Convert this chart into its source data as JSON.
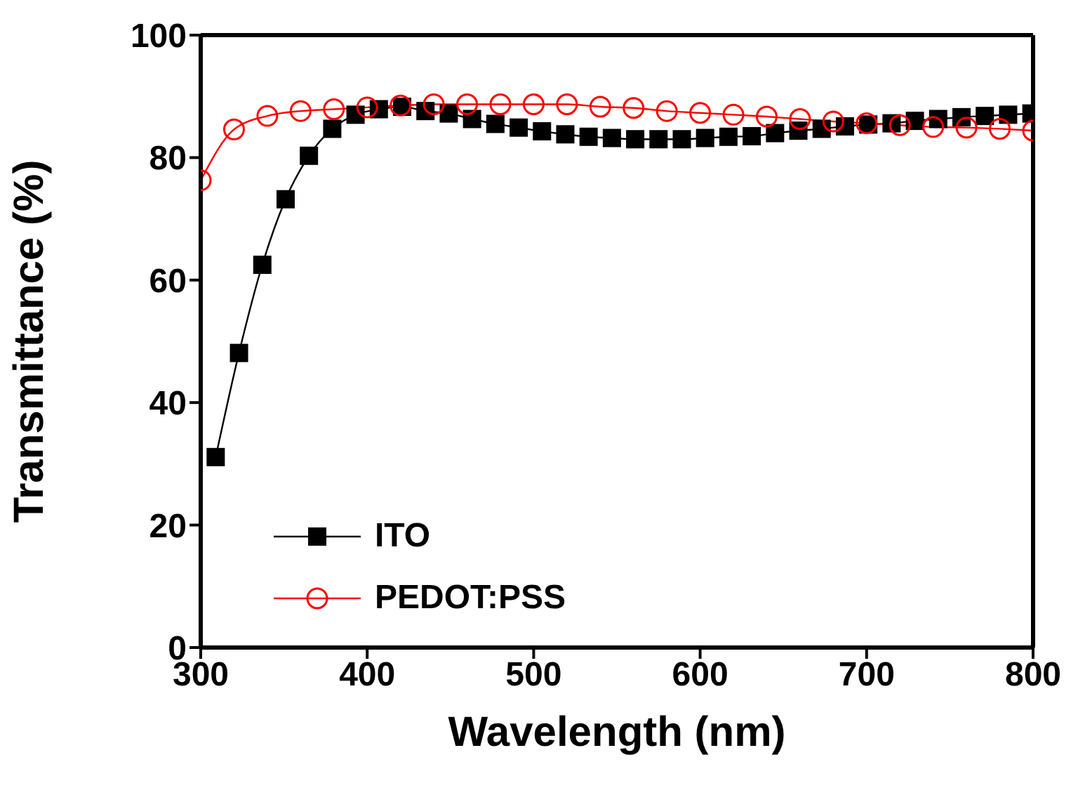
{
  "chart_data": {
    "type": "line",
    "xlabel": "Wavelength (nm)",
    "ylabel": "Transmittance (%)",
    "xlim": [
      300,
      800
    ],
    "ylim": [
      0,
      100
    ],
    "xticks": [
      300,
      400,
      500,
      600,
      700,
      800
    ],
    "yticks": [
      0,
      20,
      40,
      60,
      80,
      100
    ],
    "grid": false,
    "legend": "bottom left",
    "line_style": "solid",
    "series": [
      {
        "name": "ITO",
        "color": "#000000",
        "marker": "square",
        "x": [
          309,
          323,
          337,
          351,
          365,
          379,
          393,
          407,
          421,
          435,
          449,
          463,
          477,
          491,
          505,
          519,
          533,
          547,
          561,
          575,
          589,
          603,
          617,
          631,
          645,
          659,
          673,
          687,
          701,
          715,
          729,
          743,
          757,
          771,
          785,
          799
        ],
        "values": [
          31.1,
          48.1,
          62.5,
          73.2,
          80.3,
          84.7,
          87.0,
          87.9,
          88.3,
          87.6,
          87.2,
          86.3,
          85.5,
          84.9,
          84.3,
          83.8,
          83.4,
          83.2,
          83.0,
          83.0,
          83.0,
          83.2,
          83.4,
          83.5,
          84.0,
          84.4,
          84.7,
          85.1,
          85.4,
          85.6,
          86.0,
          86.3,
          86.6,
          86.8,
          87.0,
          87.2
        ]
      },
      {
        "name": "PEDOT:PSS",
        "color": "#ff0000",
        "marker": "circle",
        "x": [
          300,
          320,
          340,
          360,
          380,
          400,
          420,
          440,
          460,
          480,
          500,
          520,
          540,
          560,
          580,
          600,
          620,
          640,
          660,
          680,
          700,
          720,
          740,
          760,
          780,
          800
        ],
        "values": [
          76.3,
          84.6,
          86.8,
          87.6,
          87.9,
          88.2,
          88.5,
          88.7,
          88.7,
          88.7,
          88.7,
          88.7,
          88.3,
          88.1,
          87.6,
          87.3,
          87.0,
          86.7,
          86.3,
          85.9,
          85.6,
          85.3,
          85.0,
          84.9,
          84.7,
          84.4
        ]
      }
    ]
  }
}
